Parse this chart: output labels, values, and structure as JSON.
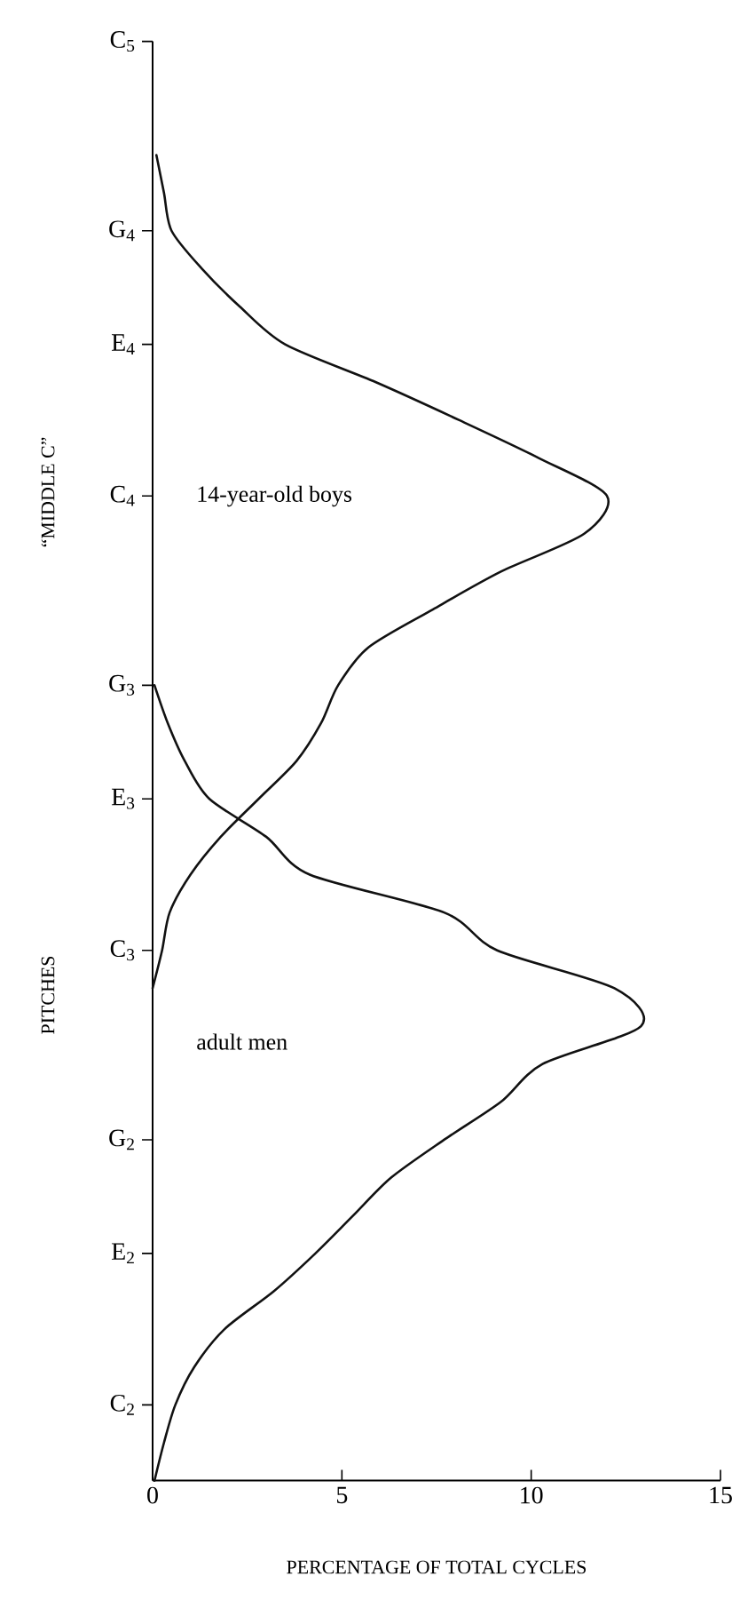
{
  "chart_data": {
    "type": "line",
    "orientation": "horizontal",
    "xlabel": "PERCENTAGE OF TOTAL CYCLES",
    "ylabel": "PITCHES",
    "annotations": [
      "“MIDDLE C”"
    ],
    "xlim": [
      0,
      15
    ],
    "xticks": [
      0,
      5,
      10,
      15
    ],
    "categories": [
      "C$_{5}$",
      null,
      null,
      null,
      null,
      "G$_{4}$",
      null,
      null,
      "E$_{4}$",
      null,
      null,
      null,
      "C$_{4}$",
      null,
      null,
      null,
      null,
      "G$_{3}$",
      null,
      null,
      "E$_{3}$",
      null,
      null,
      null,
      "C$_{3}$",
      null,
      null,
      null,
      null,
      "G$_{2}$",
      null,
      null,
      "E$_{2}$",
      null,
      null,
      null,
      "C$_{2}$",
      null,
      null
    ],
    "grid": false,
    "legend": false,
    "marker": "none",
    "line_style": "solid",
    "series": [
      {
        "name": "14-year-old boys",
        "color": "#111111",
        "values": [
          null,
          null,
          null,
          0.1,
          0.3,
          0.5,
          1.3,
          2.3,
          3.5,
          5.9,
          8.1,
          10.2,
          12.0,
          11.4,
          9.2,
          7.4,
          5.7,
          4.9,
          4.45,
          3.8,
          2.8,
          1.8,
          1.0,
          0.45,
          0.25,
          0,
          null,
          null,
          null,
          null,
          null,
          null,
          null,
          null,
          null,
          null,
          null,
          null,
          null
        ]
      },
      {
        "name": "adult men",
        "color": "#111111",
        "values": [
          null,
          null,
          null,
          null,
          null,
          null,
          null,
          null,
          null,
          null,
          null,
          null,
          null,
          null,
          null,
          null,
          null,
          0.05,
          0.4,
          0.85,
          1.5,
          3.0,
          4.15,
          7.7,
          9.1,
          12.2,
          12.9,
          10.3,
          9.2,
          7.7,
          6.3,
          5.3,
          4.3,
          3.2,
          1.9,
          1.1,
          0.6,
          0.3,
          0.05
        ]
      }
    ]
  }
}
